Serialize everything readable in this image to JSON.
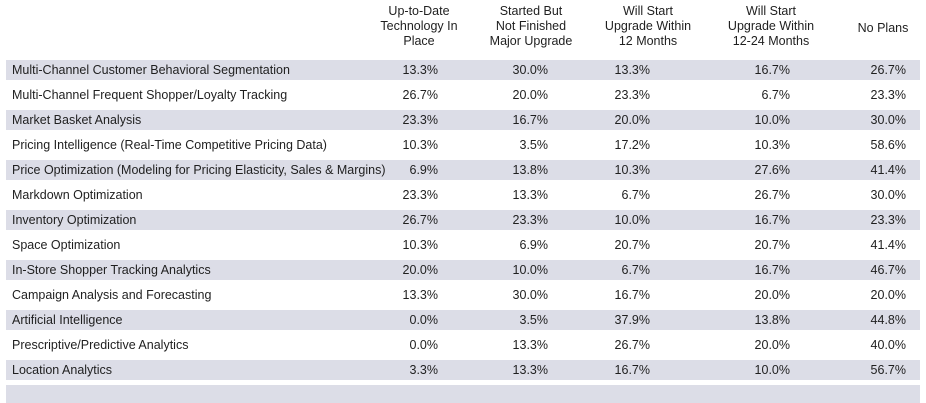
{
  "chart_data": {
    "type": "table",
    "columns": [
      "Up-to-Date Technology In Place",
      "Started But Not Finished Major Upgrade",
      "Will Start Upgrade Within 12 Months",
      "Will Start Upgrade Within 12-24 Months",
      "No Plans"
    ],
    "header_lines": [
      [
        "Up-to-Date",
        "Technology In",
        "Place"
      ],
      [
        "Started But",
        "Not Finished",
        "Major Upgrade"
      ],
      [
        "Will Start",
        "Upgrade Within",
        "12 Months"
      ],
      [
        "Will Start",
        "Upgrade Within",
        "12-24 Months"
      ],
      [
        "No Plans"
      ]
    ],
    "rows": [
      {
        "label": "Multi-Channel Customer Behavioral Segmentation",
        "values": [
          "13.3%",
          "30.0%",
          "13.3%",
          "16.7%",
          "26.7%"
        ]
      },
      {
        "label": "Multi-Channel Frequent Shopper/Loyalty Tracking",
        "values": [
          "26.7%",
          "20.0%",
          "23.3%",
          "6.7%",
          "23.3%"
        ]
      },
      {
        "label": "Market Basket Analysis",
        "values": [
          "23.3%",
          "16.7%",
          "20.0%",
          "10.0%",
          "30.0%"
        ]
      },
      {
        "label": "Pricing Intelligence (Real-Time Competitive Pricing Data)",
        "values": [
          "10.3%",
          "3.5%",
          "17.2%",
          "10.3%",
          "58.6%"
        ]
      },
      {
        "label": "Price Optimization (Modeling for Pricing Elasticity, Sales & Margins)",
        "values": [
          "6.9%",
          "13.8%",
          "10.3%",
          "27.6%",
          "41.4%"
        ]
      },
      {
        "label": "Markdown Optimization",
        "values": [
          "23.3%",
          "13.3%",
          "6.7%",
          "26.7%",
          "30.0%"
        ]
      },
      {
        "label": "Inventory Optimization",
        "values": [
          "26.7%",
          "23.3%",
          "10.0%",
          "16.7%",
          "23.3%"
        ]
      },
      {
        "label": "Space Optimization",
        "values": [
          "10.3%",
          "6.9%",
          "20.7%",
          "20.7%",
          "41.4%"
        ]
      },
      {
        "label": "In-Store Shopper Tracking Analytics",
        "values": [
          "20.0%",
          "10.0%",
          "6.7%",
          "16.7%",
          "46.7%"
        ]
      },
      {
        "label": "Campaign Analysis and Forecasting",
        "values": [
          "13.3%",
          "30.0%",
          "16.7%",
          "20.0%",
          "20.0%"
        ]
      },
      {
        "label": "Artificial Intelligence",
        "values": [
          "0.0%",
          "3.5%",
          "37.9%",
          "13.8%",
          "44.8%"
        ]
      },
      {
        "label": "Prescriptive/Predictive Analytics",
        "values": [
          "0.0%",
          "13.3%",
          "26.7%",
          "20.0%",
          "40.0%"
        ]
      },
      {
        "label": "Location Analytics",
        "values": [
          "3.3%",
          "13.3%",
          "16.7%",
          "10.0%",
          "56.7%"
        ]
      }
    ],
    "shade_color": "#dcdde7"
  }
}
